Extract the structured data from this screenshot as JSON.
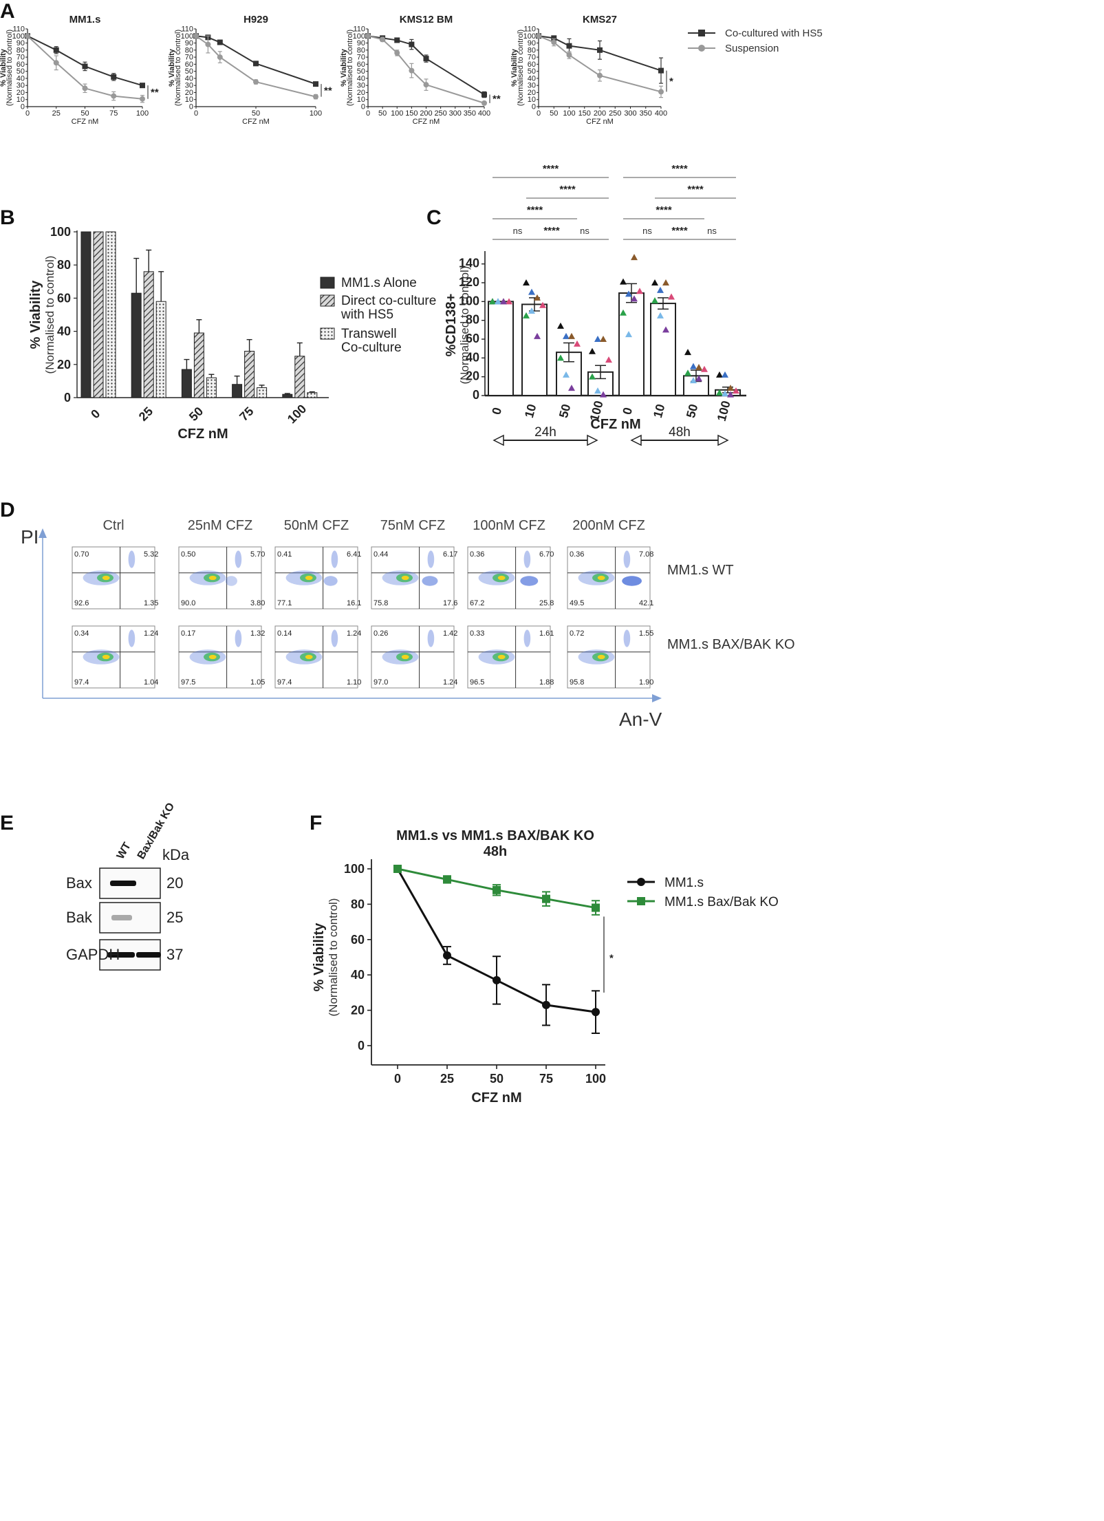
{
  "panels": {
    "A": "A",
    "B": "B",
    "C": "C",
    "D": "D",
    "E": "E",
    "F": "F"
  },
  "chart_data": [
    {
      "id": "A1",
      "type": "line",
      "title": "MM1.s",
      "xlabel": "CFZ nM",
      "ylabel": "% Viability",
      "ylabel2": "(Normalised to control)",
      "xlim": [
        0,
        100
      ],
      "ylim": [
        0,
        110
      ],
      "xticks": [
        0,
        25,
        50,
        75,
        100
      ],
      "yticks": [
        0,
        10,
        20,
        30,
        40,
        50,
        60,
        70,
        80,
        90,
        100,
        110
      ],
      "series": [
        {
          "name": "Co-cultured with HS5",
          "color": "#333333",
          "marker": "square",
          "x": [
            0,
            25,
            50,
            75,
            100
          ],
          "y": [
            100,
            80,
            57,
            42,
            30
          ],
          "err": [
            0,
            5,
            6,
            5,
            3
          ]
        },
        {
          "name": "Suspension",
          "color": "#999999",
          "marker": "circle",
          "x": [
            0,
            25,
            50,
            75,
            100
          ],
          "y": [
            100,
            62,
            26,
            15,
            11
          ],
          "err": [
            0,
            10,
            6,
            6,
            5
          ]
        }
      ],
      "annotation": "**"
    },
    {
      "id": "A2",
      "type": "line",
      "title": "H929",
      "xlabel": "CFZ nM",
      "ylabel": "% Viability",
      "ylabel2": "(Normalised to control)",
      "xlim": [
        0,
        100
      ],
      "ylim": [
        0,
        110
      ],
      "xticks": [
        0,
        50,
        100
      ],
      "yticks": [
        0,
        10,
        20,
        30,
        40,
        50,
        60,
        70,
        80,
        90,
        100,
        110
      ],
      "series": [
        {
          "name": "Co-cultured with HS5",
          "color": "#333333",
          "marker": "square",
          "x": [
            0,
            10,
            20,
            50,
            100
          ],
          "y": [
            100,
            98,
            91,
            61,
            32
          ],
          "err": [
            0,
            2,
            3,
            2,
            2
          ]
        },
        {
          "name": "Suspension",
          "color": "#999999",
          "marker": "circle",
          "x": [
            0,
            10,
            20,
            50,
            100
          ],
          "y": [
            100,
            88,
            70,
            35,
            14
          ],
          "err": [
            0,
            12,
            8,
            3,
            3
          ]
        }
      ],
      "annotation": "**"
    },
    {
      "id": "A3",
      "type": "line",
      "title": "KMS12 BM",
      "xlabel": "CFZ nM",
      "ylabel": "% Viability",
      "ylabel2": "(Normalised to control)",
      "xlim": [
        0,
        400
      ],
      "ylim": [
        0,
        110
      ],
      "xticks": [
        0,
        50,
        100,
        150,
        200,
        250,
        300,
        350,
        400
      ],
      "yticks": [
        0,
        10,
        20,
        30,
        40,
        50,
        60,
        70,
        80,
        90,
        100,
        110
      ],
      "series": [
        {
          "name": "Co-cultured with HS5",
          "color": "#333333",
          "marker": "square",
          "x": [
            0,
            50,
            100,
            150,
            200,
            400
          ],
          "y": [
            100,
            97,
            94,
            88,
            68,
            17
          ],
          "err": [
            0,
            2,
            3,
            7,
            5,
            4
          ]
        },
        {
          "name": "Suspension",
          "color": "#999999",
          "marker": "circle",
          "x": [
            0,
            50,
            100,
            150,
            200,
            400
          ],
          "y": [
            100,
            95,
            76,
            51,
            31,
            5
          ],
          "err": [
            0,
            3,
            4,
            10,
            8,
            2
          ]
        }
      ],
      "annotation": "**"
    },
    {
      "id": "A4",
      "type": "line",
      "title": "KMS27",
      "xlabel": "CFZ nM",
      "ylabel": "% Viability",
      "ylabel2": "(Normalised to control)",
      "xlim": [
        0,
        400
      ],
      "ylim": [
        0,
        110
      ],
      "xticks": [
        0,
        50,
        100,
        150,
        200,
        250,
        300,
        350,
        400
      ],
      "yticks": [
        0,
        10,
        20,
        30,
        40,
        50,
        60,
        70,
        80,
        90,
        100,
        110
      ],
      "series": [
        {
          "name": "Co-cultured with HS5",
          "color": "#333333",
          "marker": "square",
          "x": [
            0,
            50,
            100,
            200,
            400
          ],
          "y": [
            100,
            97,
            86,
            80,
            51
          ],
          "err": [
            0,
            3,
            10,
            13,
            18
          ]
        },
        {
          "name": "Suspension",
          "color": "#999999",
          "marker": "circle",
          "x": [
            0,
            50,
            100,
            200,
            400
          ],
          "y": [
            100,
            91,
            73,
            44,
            21
          ],
          "err": [
            0,
            5,
            5,
            8,
            8
          ]
        }
      ],
      "annotation": "*"
    },
    {
      "id": "B",
      "type": "bar",
      "xlabel": "CFZ nM",
      "ylabel": "% Viability",
      "ylabel2": "(Normalised to control)",
      "ylim": [
        0,
        100
      ],
      "yticks": [
        0,
        20,
        40,
        60,
        80,
        100
      ],
      "categories": [
        "0",
        "25",
        "50",
        "75",
        "100"
      ],
      "series": [
        {
          "name": "MM1.s Alone",
          "pattern": "solid",
          "values": [
            100,
            63,
            17,
            8,
            2
          ],
          "err": [
            0,
            21,
            6,
            5,
            0.5
          ]
        },
        {
          "name": "Direct co-culture with HS5",
          "legend_lines": [
            "Direct co-culture",
            "with HS5"
          ],
          "pattern": "hatch",
          "values": [
            100,
            76,
            39,
            28,
            25
          ],
          "err": [
            0,
            13,
            8,
            7,
            8
          ]
        },
        {
          "name": "Transwell Co-culture",
          "legend_lines": [
            "Transwell",
            "Co-culture"
          ],
          "pattern": "dots",
          "values": [
            100,
            58,
            12,
            6,
            3
          ],
          "err": [
            0,
            18,
            2,
            1.5,
            0.5
          ]
        }
      ]
    },
    {
      "id": "C",
      "type": "bar",
      "xlabel": "CFZ nM",
      "ylabel": "%CD138+",
      "ylabel2": "(Normalised to control)",
      "ylim": [
        0,
        150
      ],
      "yticks": [
        0,
        20,
        40,
        60,
        80,
        100,
        120,
        140
      ],
      "categories": [
        "0",
        "10",
        "50",
        "100",
        "0",
        "10",
        "50",
        "100"
      ],
      "values": [
        100,
        97,
        46,
        25,
        109,
        98,
        21,
        6
      ],
      "err": [
        0,
        7,
        10,
        7,
        10,
        6,
        6,
        3
      ],
      "point_colors": [
        "#111111",
        "#3a6fc4",
        "#8a5a2b",
        "#d94a78",
        "#2aa14a",
        "#79b8e8",
        "#7a3e9d",
        "#cc3333"
      ],
      "points": [
        [
          100,
          100,
          100,
          100,
          100,
          100,
          100
        ],
        [
          120,
          110,
          104,
          96,
          85,
          90,
          63
        ],
        [
          74,
          63,
          63,
          55,
          40,
          22,
          8
        ],
        [
          47,
          60,
          60,
          38,
          20,
          5,
          1
        ],
        [
          121,
          108,
          147,
          111,
          88,
          65,
          103
        ],
        [
          120,
          112,
          120,
          105,
          101,
          85,
          70
        ],
        [
          46,
          31,
          30,
          28,
          24,
          16,
          18
        ],
        [
          22,
          22,
          8,
          5,
          3,
          2,
          1
        ]
      ],
      "groups": [
        {
          "label": "24h"
        },
        {
          "label": "48h"
        }
      ],
      "comparisons": [
        {
          "from": 0,
          "to": 3,
          "label": "****"
        },
        {
          "from": 1,
          "to": 3,
          "label": "****"
        },
        {
          "from": 0,
          "to": 2,
          "label": "****"
        },
        {
          "from": 0,
          "to": 1,
          "label": "ns"
        },
        {
          "from": 1,
          "to": 2,
          "label": "****"
        },
        {
          "from": 2,
          "to": 3,
          "label": "ns"
        },
        {
          "from": 4,
          "to": 7,
          "label": "****"
        },
        {
          "from": 5,
          "to": 7,
          "label": "****"
        },
        {
          "from": 4,
          "to": 6,
          "label": "****"
        },
        {
          "from": 4,
          "to": 5,
          "label": "ns"
        },
        {
          "from": 5,
          "to": 6,
          "label": "****"
        },
        {
          "from": 6,
          "to": 7,
          "label": "ns"
        }
      ]
    },
    {
      "id": "F",
      "type": "line",
      "title": "MM1.s vs MM1.s BAX/BAK KO",
      "subtitle": "48h",
      "xlabel": "CFZ nM",
      "ylabel": "% Viability",
      "ylabel2": "(Normalised to control)",
      "xlim": [
        0,
        100
      ],
      "ylim": [
        0,
        100
      ],
      "xticks": [
        0,
        25,
        50,
        75,
        100
      ],
      "yticks": [
        0,
        20,
        40,
        60,
        80,
        100
      ],
      "series": [
        {
          "name": "MM1.s",
          "color": "#111111",
          "marker": "circle",
          "x": [
            0,
            25,
            50,
            75,
            100
          ],
          "y": [
            100,
            51,
            37,
            23,
            19
          ],
          "err": [
            0,
            5,
            13.5,
            11.5,
            12
          ]
        },
        {
          "name": "MM1.s Bax/Bak KO",
          "color": "#2e8b3a",
          "marker": "square",
          "x": [
            0,
            25,
            50,
            75,
            100
          ],
          "y": [
            100,
            94,
            88,
            83,
            78
          ],
          "err": [
            0,
            2,
            3,
            4,
            4
          ]
        }
      ],
      "annotation": "*"
    }
  ],
  "flow": {
    "y_axis": "PI",
    "x_axis": "An-V",
    "conditions": [
      "Ctrl",
      "25nM CFZ",
      "50nM CFZ",
      "75nM CFZ",
      "100nM CFZ",
      "200nM CFZ"
    ],
    "rows": [
      {
        "label": "MM1.s WT",
        "q1": [
          "0.70",
          "0.50",
          "0.41",
          "0.44",
          "0.36",
          "0.36"
        ],
        "q2": [
          "5.32",
          "5.70",
          "6.41",
          "6.17",
          "6.70",
          "7.08"
        ],
        "q3": [
          "1.35",
          "3.80",
          "16.1",
          "17.6",
          "25.8",
          "42.1"
        ],
        "q4": [
          "92.6",
          "90.0",
          "77.1",
          "75.8",
          "67.2",
          "49.5"
        ]
      },
      {
        "label": "MM1.s BAX/BAK KO",
        "q1": [
          "0.34",
          "0.17",
          "0.14",
          "0.26",
          "0.33",
          "0.72"
        ],
        "q2": [
          "1.24",
          "1.32",
          "1.24",
          "1.42",
          "1.61",
          "1.55"
        ],
        "q3": [
          "1.04",
          "1.05",
          "1.10",
          "1.24",
          "1.88",
          "1.90"
        ],
        "q4": [
          "97.4",
          "97.5",
          "97.4",
          "97.0",
          "96.5",
          "95.8"
        ]
      }
    ]
  },
  "western": {
    "lanes": [
      "WT",
      "Bax/Bak KO"
    ],
    "kda_label": "kDa",
    "bands": [
      {
        "protein": "Bax",
        "kda": "20"
      },
      {
        "protein": "Bak",
        "kda": "25"
      },
      {
        "protein": "GAPDH",
        "kda": "37"
      }
    ]
  }
}
